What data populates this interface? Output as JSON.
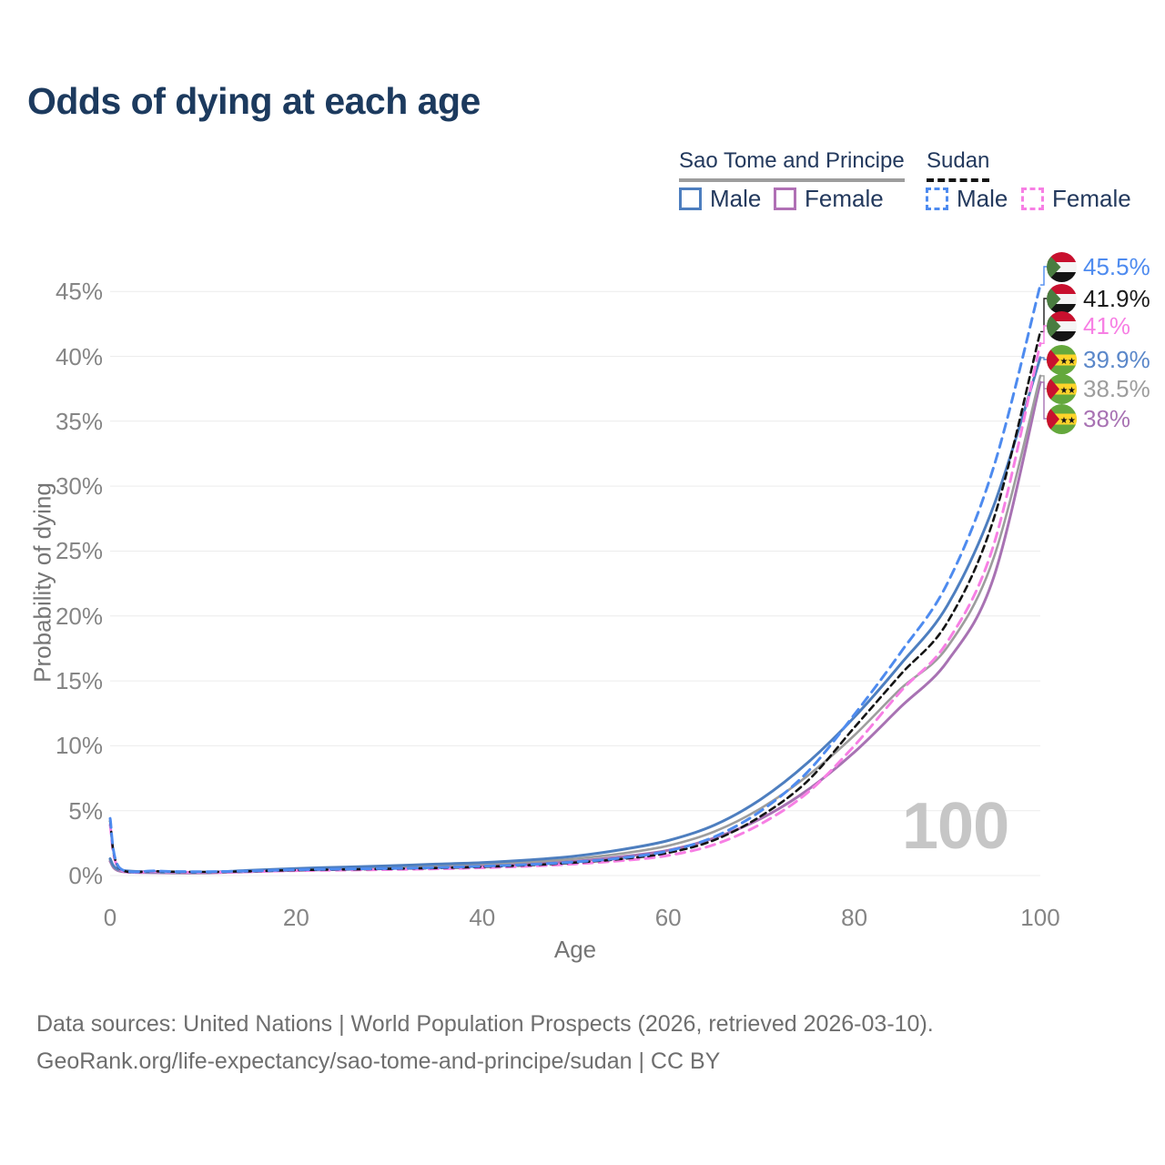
{
  "title": "Odds of dying at each age",
  "colors": {
    "title_text": "#1c3a5e",
    "legend_text": "#23395d",
    "axis_text": "#757575",
    "tick_text": "#858585",
    "gridline": "#ececec",
    "watermark_text": "#c6c6c6",
    "footer_text": "#6e6e6e"
  },
  "legend": {
    "groups": [
      {
        "label": "Sao Tome and Principe",
        "line_style": "solid",
        "line_color": "#9d9d9d"
      },
      {
        "label": "Sudan",
        "line_style": "dashed",
        "line_color": "#141414"
      }
    ],
    "items": [
      {
        "label": "Male",
        "country": "Sao Tome and Principe",
        "swatch_style": "solid",
        "swatch_color": "#4d7ebf"
      },
      {
        "label": "Female",
        "country": "Sao Tome and Principe",
        "swatch_style": "solid",
        "swatch_color": "#b070b5"
      },
      {
        "label": "Male",
        "country": "Sudan",
        "swatch_style": "dashed",
        "swatch_color": "#4e8bef"
      },
      {
        "label": "Female",
        "country": "Sudan",
        "swatch_style": "dashed",
        "swatch_color": "#f77fe4"
      }
    ]
  },
  "chart_data": {
    "type": "line",
    "title": "Odds of dying at each age",
    "xlabel": "Age",
    "ylabel": "Probability of dying",
    "x_ticks": [
      "0",
      "20",
      "40",
      "60",
      "80",
      "100"
    ],
    "x_tick_values": [
      0,
      20,
      40,
      60,
      80,
      100
    ],
    "y_ticks": [
      "0%",
      "5%",
      "10%",
      "15%",
      "20%",
      "25%",
      "30%",
      "35%",
      "40%",
      "45%"
    ],
    "y_tick_values": [
      0,
      5,
      10,
      15,
      20,
      25,
      30,
      35,
      40,
      45
    ],
    "xlim": [
      0,
      100
    ],
    "ylim_pct": [
      0,
      47
    ],
    "grid": "horizontal",
    "legend_position": "top-right",
    "annotation": "100",
    "ages": [
      0,
      1,
      5,
      10,
      15,
      20,
      25,
      30,
      35,
      40,
      45,
      50,
      55,
      60,
      65,
      70,
      75,
      80,
      85,
      90,
      95,
      100
    ],
    "series": [
      {
        "name": "Sao Tome and Principe Female",
        "country": "Sao Tome and Principe",
        "sex": "Female",
        "style": "solid",
        "color": "#a872b3",
        "end_label": "38%",
        "values": [
          1.1,
          0.35,
          0.22,
          0.2,
          0.3,
          0.4,
          0.48,
          0.55,
          0.63,
          0.75,
          0.88,
          1.1,
          1.45,
          1.95,
          2.9,
          4.4,
          6.6,
          9.5,
          13.0,
          16.5,
          23.0,
          38.0
        ]
      },
      {
        "name": "Sao Tome and Principe Both sexes",
        "country": "Sao Tome and Principe",
        "sex": "Both sexes",
        "style": "solid",
        "color": "#9d9d9d",
        "end_label": "38.5%",
        "values": [
          1.2,
          0.4,
          0.25,
          0.22,
          0.35,
          0.48,
          0.57,
          0.66,
          0.77,
          0.9,
          1.05,
          1.3,
          1.7,
          2.3,
          3.4,
          5.2,
          7.7,
          10.8,
          14.4,
          17.6,
          24.5,
          38.5
        ]
      },
      {
        "name": "Sao Tome and Principe Male",
        "country": "Sao Tome and Principe",
        "sex": "Male",
        "style": "solid",
        "color": "#4d7ebf",
        "end_label": "39.9%",
        "values": [
          1.3,
          0.45,
          0.28,
          0.25,
          0.4,
          0.55,
          0.65,
          0.75,
          0.88,
          1.0,
          1.2,
          1.5,
          2.0,
          2.7,
          3.9,
          5.9,
          8.7,
          12.2,
          16.3,
          20.8,
          28.5,
          39.9
        ]
      },
      {
        "name": "Sudan Female",
        "country": "Sudan",
        "sex": "Female",
        "style": "dashed",
        "color": "#f77fe4",
        "end_label": "41%",
        "values": [
          3.9,
          0.5,
          0.3,
          0.25,
          0.3,
          0.38,
          0.42,
          0.46,
          0.52,
          0.6,
          0.72,
          0.9,
          1.15,
          1.55,
          2.4,
          4.0,
          6.4,
          10.0,
          14.2,
          18.0,
          25.5,
          41.0
        ]
      },
      {
        "name": "Sudan Both sexes",
        "country": "Sudan",
        "sex": "Both sexes",
        "style": "dashed",
        "color": "#141414",
        "end_label": "41.9%",
        "values": [
          4.2,
          0.55,
          0.33,
          0.28,
          0.33,
          0.42,
          0.47,
          0.52,
          0.58,
          0.67,
          0.8,
          1.0,
          1.28,
          1.75,
          2.75,
          4.6,
          7.3,
          11.4,
          15.5,
          19.5,
          27.5,
          41.9
        ]
      },
      {
        "name": "Sudan Male",
        "country": "Sudan",
        "sex": "Male",
        "style": "dashed",
        "color": "#4e8bef",
        "end_label": "45.5%",
        "values": [
          4.4,
          0.6,
          0.35,
          0.3,
          0.35,
          0.45,
          0.5,
          0.55,
          0.62,
          0.72,
          0.85,
          1.05,
          1.35,
          1.9,
          3.0,
          5.0,
          8.0,
          12.4,
          17.2,
          22.5,
          31.5,
          45.5
        ]
      }
    ]
  },
  "end_labels": [
    {
      "flag": "Sudan",
      "label": "45.5%",
      "value": 45.5,
      "color": "#4e8bef"
    },
    {
      "flag": "Sudan",
      "label": "41.9%",
      "value": 41.9,
      "color": "#1c1c1c"
    },
    {
      "flag": "Sudan",
      "label": "41%",
      "value": 41,
      "color": "#f77fe4"
    },
    {
      "flag": "Sao Tome and Principe",
      "label": "39.9%",
      "value": 39.9,
      "color": "#5a87c9"
    },
    {
      "flag": "Sao Tome and Principe",
      "label": "38.5%",
      "value": 38.5,
      "color": "#9d9d9d"
    },
    {
      "flag": "Sao Tome and Principe",
      "label": "38%",
      "value": 38,
      "color": "#a872b3"
    }
  ],
  "footer": {
    "line1": "Data sources: United Nations | World Population Prospects (2026, retrieved 2026-03-10).",
    "line2": "GeoRank.org/life-expectancy/sao-tome-and-principe/sudan | CC BY"
  }
}
